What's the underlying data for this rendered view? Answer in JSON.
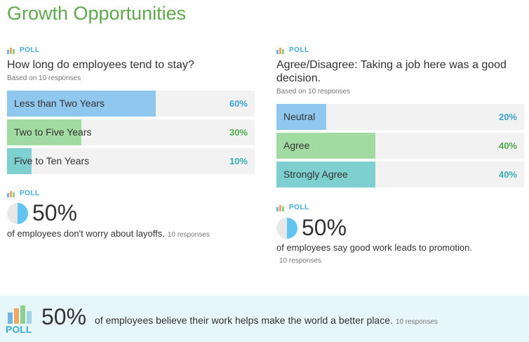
{
  "title": "Growth Opportunities",
  "poll_label": "POLL",
  "colors": {
    "blue": "#8fc7ef",
    "green": "#a2dba2",
    "teal": "#7ecfcf",
    "pct_blue": "#3ba3d6",
    "pct_green": "#4caa4c",
    "pct_teal": "#3aafb5"
  },
  "poll1": {
    "question": "How long do employees tend to stay?",
    "based": "Based on 10 responses",
    "options": [
      {
        "label": "Less than Two Years",
        "pct": "60%",
        "value": 60
      },
      {
        "label": "Two to Five Years",
        "pct": "30%",
        "value": 30
      },
      {
        "label": "Five to Ten Years",
        "pct": "10%",
        "value": 10
      }
    ]
  },
  "poll2": {
    "question_line1": "Agree/Disagree: Taking a job here was a good",
    "question_line2": "decision.",
    "based": "Based on 10 responses",
    "options": [
      {
        "label": "Neutral",
        "pct": "20%",
        "value": 20
      },
      {
        "label": "Agree",
        "pct": "40%",
        "value": 40
      },
      {
        "label": "Strongly Agree",
        "pct": "40%",
        "value": 40
      }
    ]
  },
  "stat1": {
    "pct": "50%",
    "value": 50,
    "text": "of employees don't worry about layoffs.",
    "responses": "10 responses"
  },
  "stat2": {
    "pct": "50%",
    "value": 50,
    "text": "of employees say good work leads to promotion.",
    "responses": "10 responses"
  },
  "banner": {
    "pct": "50%",
    "text": "of employees believe their work helps make the world a better place.",
    "responses": "10 responses"
  }
}
